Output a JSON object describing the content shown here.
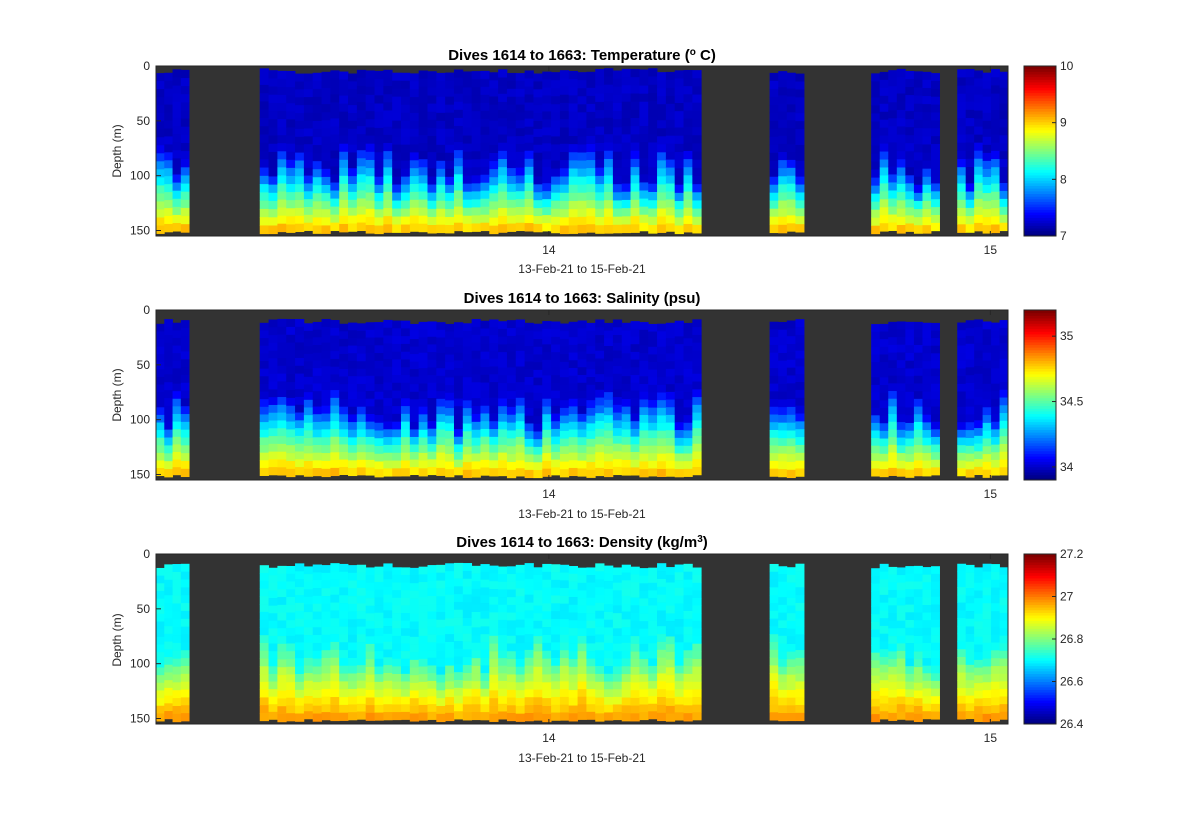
{
  "chart_data": [
    {
      "type": "heatmap",
      "title_main": "Dives 1614 to 1663: Temperature (",
      "title_sup": "o",
      "title_end": " C)",
      "xlabel": "13-Feb-21 to 15-Feb-21",
      "ylabel": "Depth (m)",
      "y_ticks": [
        0,
        50,
        100,
        150
      ],
      "ylim": [
        0,
        155
      ],
      "x_ticks": [
        {
          "label": "14",
          "value": 14
        },
        {
          "label": "15",
          "value": 15
        }
      ],
      "xlim": [
        13.11,
        15.04
      ],
      "colorbar_range": [
        7,
        10
      ],
      "colorbar_ticks": [
        7,
        8,
        9,
        10
      ],
      "variable": "temperature",
      "surface_value": 7.2,
      "bottom_value": 9.2
    },
    {
      "type": "heatmap",
      "title_main": "Dives 1614 to 1663: Salinity (psu)",
      "title_sup": "",
      "title_end": "",
      "xlabel": "13-Feb-21 to 15-Feb-21",
      "ylabel": "Depth (m)",
      "y_ticks": [
        0,
        50,
        100,
        150
      ],
      "ylim": [
        0,
        155
      ],
      "x_ticks": [
        {
          "label": "14",
          "value": 14
        },
        {
          "label": "15",
          "value": 15
        }
      ],
      "xlim": [
        13.11,
        15.04
      ],
      "colorbar_range": [
        33.9,
        35.2
      ],
      "colorbar_ticks": [
        34,
        34.5,
        35
      ],
      "variable": "salinity",
      "surface_value": 34.0,
      "bottom_value": 34.85
    },
    {
      "type": "heatmap",
      "title_main": "Dives 1614 to 1663: Density (kg/m",
      "title_sup": "3",
      "title_end": ")",
      "xlabel": "13-Feb-21 to 15-Feb-21",
      "ylabel": "Depth (m)",
      "y_ticks": [
        0,
        50,
        100,
        150
      ],
      "ylim": [
        0,
        155
      ],
      "x_ticks": [
        {
          "label": "14",
          "value": 14
        },
        {
          "label": "15",
          "value": 15
        }
      ],
      "xlim": [
        13.11,
        15.04
      ],
      "colorbar_range": [
        26.4,
        27.2
      ],
      "colorbar_ticks": [
        26.4,
        26.6,
        26.8,
        27,
        27.2
      ],
      "variable": "density",
      "surface_value": 26.7,
      "bottom_value": 27.0
    }
  ],
  "profile_segments": [
    {
      "start": 13.11,
      "end": 13.185
    },
    {
      "start": 13.345,
      "end": 14.345
    },
    {
      "start": 14.5,
      "end": 14.578
    },
    {
      "start": 14.73,
      "end": 14.885
    },
    {
      "start": 14.925,
      "end": 15.04
    }
  ],
  "colors": {
    "background_gap": "#333333",
    "axes_frame": "#262626"
  }
}
